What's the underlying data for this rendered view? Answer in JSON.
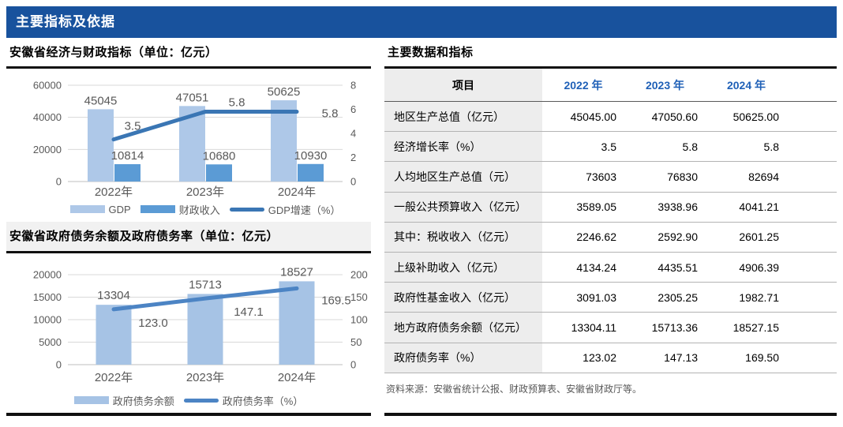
{
  "page": {
    "title": "主要指标及依据"
  },
  "left": {
    "sections": [
      {
        "title": "安徽省经济与财政指标（单位：亿元）"
      },
      {
        "title": "安徽省政府债务余额及政府债务率（单位：亿元）"
      }
    ]
  },
  "right": {
    "title": "主要数据和指标",
    "table": {
      "columns": [
        "项目",
        "2022 年",
        "2023 年",
        "2024 年"
      ],
      "rows": [
        [
          "地区生产总值（亿元）",
          "45045.00",
          "47050.60",
          "50625.00"
        ],
        [
          "经济增长率（%）",
          "3.5",
          "5.8",
          "5.8"
        ],
        [
          "人均地区生产总值（元）",
          "73603",
          "76830",
          "82694"
        ],
        [
          "一般公共预算收入（亿元）",
          "3589.05",
          "3938.96",
          "4041.21"
        ],
        [
          "其中：税收收入（亿元）",
          "2246.62",
          "2592.90",
          "2601.25"
        ],
        [
          "上级补助收入（亿元）",
          "4134.24",
          "4435.51",
          "4906.39"
        ],
        [
          "政府性基金收入（亿元）",
          "3091.03",
          "2305.25",
          "1982.71"
        ],
        [
          "地方政府债务余额（亿元）",
          "13304.11",
          "15713.36",
          "18527.15"
        ],
        [
          "政府债务率（%）",
          "123.02",
          "147.13",
          "169.50"
        ]
      ]
    },
    "source_note": "资料来源：安徽省统计公报、财政预算表、安徽省财政厅等。"
  },
  "colors": {
    "banner": "#18529D",
    "bar_light": "#AEC8E8",
    "bar_medium": "#5B9BD5",
    "line_dark": "#3A76B4",
    "line_debt": "#4C84C4",
    "year_header": "#1F60B7"
  },
  "chart_data": [
    {
      "type": "bar",
      "subtype": "bar+line-combo",
      "title": "安徽省经济与财政指标（单位：亿元）",
      "categories": [
        "2022年",
        "2023年",
        "2024年"
      ],
      "series": [
        {
          "name": "GDP",
          "kind": "bar",
          "color": "#AEC8E8",
          "values": [
            45045,
            47051,
            50625
          ],
          "labels": [
            "45045",
            "47051",
            "50625"
          ]
        },
        {
          "name": "财政收入",
          "kind": "bar",
          "color": "#5B9BD5",
          "values": [
            10814,
            10680,
            10930
          ],
          "labels": [
            "10814",
            "10680",
            "10930"
          ]
        },
        {
          "name": "GDP增速（%）",
          "kind": "line",
          "color": "#3A76B4",
          "axis": "right",
          "values": [
            3.5,
            5.8,
            5.8
          ],
          "labels": [
            "3.5",
            "5.8",
            "5.8"
          ],
          "label_offsets": [
            [
              24,
              -12
            ],
            [
              40,
              -7
            ],
            [
              42,
              7
            ]
          ]
        }
      ],
      "left_axis": {
        "min": 0,
        "max": 60000,
        "ticks": [
          0,
          20000,
          40000,
          60000
        ]
      },
      "right_axis": {
        "min": 0,
        "max": 8,
        "ticks": [
          0,
          2,
          4,
          6,
          8
        ]
      },
      "grid": true,
      "legend_position": "bottom"
    },
    {
      "type": "bar",
      "subtype": "bar+line-combo",
      "title": "安徽省政府债务余额及政府债务率（单位：亿元）",
      "categories": [
        "2022年",
        "2023年",
        "2024年"
      ],
      "series": [
        {
          "name": "政府债务余额",
          "kind": "bar",
          "color": "#A6C3E5",
          "values": [
            13304,
            15713,
            18527
          ],
          "labels": [
            "13304",
            "15713",
            "18527"
          ]
        },
        {
          "name": "政府债务率（%）",
          "kind": "line",
          "color": "#4C84C4",
          "axis": "right",
          "values": [
            123.0,
            147.1,
            169.5
          ],
          "labels": [
            "123.0",
            "147.1",
            "169.5"
          ],
          "label_offsets": [
            [
              50,
              22
            ],
            [
              55,
              22
            ],
            [
              50,
              20
            ]
          ]
        }
      ],
      "left_axis": {
        "min": 0,
        "max": 20000,
        "ticks": [
          0,
          5000,
          10000,
          15000,
          20000
        ]
      },
      "right_axis": {
        "min": 0,
        "max": 200,
        "ticks": [
          0,
          50,
          100,
          150,
          200
        ]
      },
      "grid": true,
      "legend_position": "bottom"
    }
  ]
}
